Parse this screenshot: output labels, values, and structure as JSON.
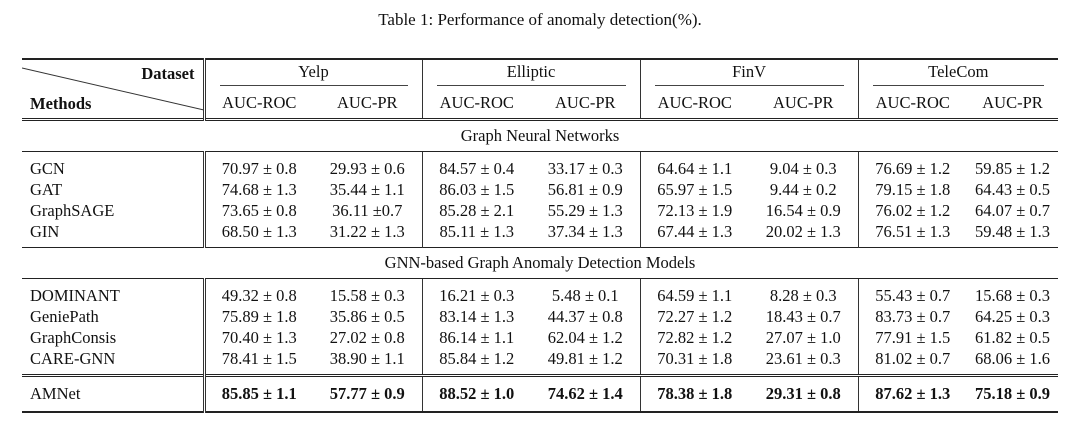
{
  "caption": "Table 1: Performance of anomaly detection(%).",
  "header": {
    "dataset_label": "Dataset",
    "methods_label": "Methods",
    "datasets": [
      "Yelp",
      "Elliptic",
      "FinV",
      "TeleCom"
    ],
    "metrics": [
      "AUC-ROC",
      "AUC-PR",
      "AUC-ROC",
      "AUC-PR",
      "AUC-ROC",
      "AUC-PR",
      "AUC-ROC",
      "AUC-PR"
    ]
  },
  "sections": [
    {
      "title": "Graph Neural Networks",
      "rows": [
        {
          "method": "GCN",
          "values": [
            "70.97 ± 0.8",
            "29.93 ± 0.6",
            "84.57 ± 0.4",
            "33.17 ± 0.3",
            "64.64 ± 1.1",
            "9.04 ± 0.3",
            "76.69 ± 1.2",
            "59.85 ± 1.2"
          ]
        },
        {
          "method": "GAT",
          "values": [
            "74.68 ± 1.3",
            "35.44 ± 1.1",
            "86.03 ± 1.5",
            "56.81 ± 0.9",
            "65.97 ± 1.5",
            "9.44 ± 0.2",
            "79.15 ± 1.8",
            "64.43 ± 0.5"
          ]
        },
        {
          "method": "GraphSAGE",
          "values": [
            "73.65 ± 0.8",
            "36.11 ±0.7",
            "85.28 ± 2.1",
            "55.29 ± 1.3",
            "72.13 ± 1.9",
            "16.54 ± 0.9",
            "76.02 ± 1.2",
            "64.07 ± 0.7"
          ]
        },
        {
          "method": "GIN",
          "values": [
            "68.50 ± 1.3",
            "31.22 ± 1.3",
            "85.11 ± 1.3",
            "37.34 ± 1.3",
            "67.44 ± 1.3",
            "20.02 ± 1.3",
            "76.51 ± 1.3",
            "59.48 ± 1.3"
          ]
        }
      ]
    },
    {
      "title": "GNN-based Graph Anomaly Detection Models",
      "rows": [
        {
          "method": "DOMINANT",
          "values": [
            "49.32 ± 0.8",
            "15.58 ± 0.3",
            "16.21 ± 0.3",
            "5.48 ± 0.1",
            "64.59 ± 1.1",
            "8.28 ± 0.3",
            "55.43 ± 0.7",
            "15.68 ± 0.3"
          ]
        },
        {
          "method": "GeniePath",
          "values": [
            "75.89 ± 1.8",
            "35.86 ± 0.5",
            "83.14 ± 1.3",
            "44.37 ± 0.8",
            "72.27 ± 1.2",
            "18.43 ± 0.7",
            "83.73 ± 0.7",
            "64.25 ± 0.3"
          ]
        },
        {
          "method": "GraphConsis",
          "values": [
            "70.40 ± 1.3",
            "27.02 ± 0.8",
            "86.14 ± 1.1",
            "62.04 ± 1.2",
            "72.82 ± 1.2",
            "27.07 ± 1.0",
            "77.91 ± 1.5",
            "61.82 ± 0.5"
          ]
        },
        {
          "method": "CARE-GNN",
          "values": [
            "78.41 ± 1.5",
            "38.90 ± 1.1",
            "85.84 ± 1.2",
            "49.81 ± 1.2",
            "70.31 ± 1.8",
            "23.61 ± 0.3",
            "81.02 ± 0.7",
            "68.06 ± 1.6"
          ]
        }
      ]
    }
  ],
  "final_row": {
    "method": "AMNet",
    "values": [
      "85.85 ± 1.1",
      "57.77 ± 0.9",
      "88.52 ± 1.0",
      "74.62 ± 1.4",
      "78.38 ± 1.8",
      "29.31 ± 0.8",
      "87.62 ± 1.3",
      "75.18 ± 0.9"
    ]
  }
}
